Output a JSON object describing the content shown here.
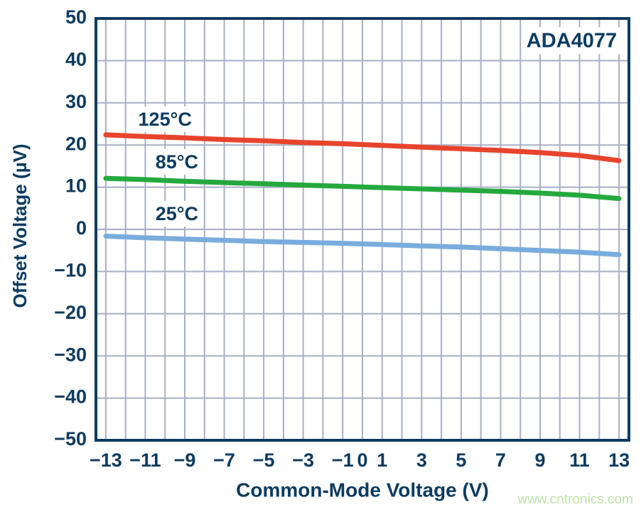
{
  "colors": {
    "axis": "#0d3b60",
    "grid": "#a9aec6",
    "background": "#ffffff"
  },
  "chart_data": {
    "type": "line",
    "title": "",
    "xlabel": "Common-Mode Voltage (V)",
    "ylabel": "Offset Voltage (µV)",
    "xlim": [
      -13.5,
      13.5
    ],
    "ylim": [
      -50,
      50
    ],
    "grid": true,
    "x_grid_step": 1,
    "y_grid_step": 10,
    "legend_position": "inline-labels",
    "x_ticks": [
      {
        "value": -13,
        "label": "−13"
      },
      {
        "value": -11,
        "label": "−11"
      },
      {
        "value": -9,
        "label": "−9"
      },
      {
        "value": -7,
        "label": "−7"
      },
      {
        "value": -5,
        "label": "−5"
      },
      {
        "value": -3,
        "label": "−3"
      },
      {
        "value": -1,
        "label": "−1"
      },
      {
        "value": 0,
        "label": "0"
      },
      {
        "value": 1,
        "label": "1"
      },
      {
        "value": 3,
        "label": "3"
      },
      {
        "value": 5,
        "label": "5"
      },
      {
        "value": 7,
        "label": "7"
      },
      {
        "value": 9,
        "label": "9"
      },
      {
        "value": 11,
        "label": "11"
      },
      {
        "value": 13,
        "label": "13"
      }
    ],
    "y_ticks": [
      {
        "value": 50,
        "label": "50"
      },
      {
        "value": 40,
        "label": "40"
      },
      {
        "value": 30,
        "label": "30"
      },
      {
        "value": 20,
        "label": "20"
      },
      {
        "value": 10,
        "label": "10"
      },
      {
        "value": 0,
        "label": "0"
      },
      {
        "value": -10,
        "label": "−10"
      },
      {
        "value": -20,
        "label": "−20"
      },
      {
        "value": -30,
        "label": "−30"
      },
      {
        "value": -40,
        "label": "−40"
      },
      {
        "value": -50,
        "label": "−50"
      }
    ],
    "series": [
      {
        "name": "125°C",
        "color": "#e8432c",
        "label_at": {
          "x": -10.0,
          "y": 25.8
        },
        "points": [
          [
            -13,
            22.4
          ],
          [
            -11,
            22.0
          ],
          [
            -9,
            21.7
          ],
          [
            -7,
            21.3
          ],
          [
            -5,
            21.0
          ],
          [
            -3,
            20.6
          ],
          [
            -1,
            20.3
          ],
          [
            1,
            19.9
          ],
          [
            3,
            19.5
          ],
          [
            5,
            19.1
          ],
          [
            7,
            18.7
          ],
          [
            9,
            18.2
          ],
          [
            11,
            17.5
          ],
          [
            13,
            16.3
          ]
        ]
      },
      {
        "name": "85°C",
        "color": "#25a83e",
        "label_at": {
          "x": -9.4,
          "y": 15.7
        },
        "points": [
          [
            -13,
            12.1
          ],
          [
            -11,
            11.8
          ],
          [
            -9,
            11.4
          ],
          [
            -7,
            11.1
          ],
          [
            -5,
            10.8
          ],
          [
            -3,
            10.5
          ],
          [
            -1,
            10.2
          ],
          [
            1,
            9.9
          ],
          [
            3,
            9.6
          ],
          [
            5,
            9.3
          ],
          [
            7,
            9.0
          ],
          [
            9,
            8.6
          ],
          [
            11,
            8.1
          ],
          [
            13,
            7.3
          ]
        ]
      },
      {
        "name": "25°C",
        "color": "#79acdd",
        "label_at": {
          "x": -9.4,
          "y": 3.4
        },
        "points": [
          [
            -13,
            -1.6
          ],
          [
            -11,
            -2.0
          ],
          [
            -9,
            -2.3
          ],
          [
            -7,
            -2.6
          ],
          [
            -5,
            -2.9
          ],
          [
            -3,
            -3.1
          ],
          [
            -1,
            -3.3
          ],
          [
            1,
            -3.6
          ],
          [
            3,
            -3.9
          ],
          [
            5,
            -4.2
          ],
          [
            7,
            -4.6
          ],
          [
            9,
            -5.0
          ],
          [
            11,
            -5.4
          ],
          [
            13,
            -6.0
          ]
        ]
      }
    ],
    "annotation": {
      "text": "ADA4077",
      "at": {
        "x": 10.6,
        "y": 44.5
      }
    },
    "watermark": {
      "text": "www.cntronics.com",
      "color": "#bce3a8"
    }
  }
}
